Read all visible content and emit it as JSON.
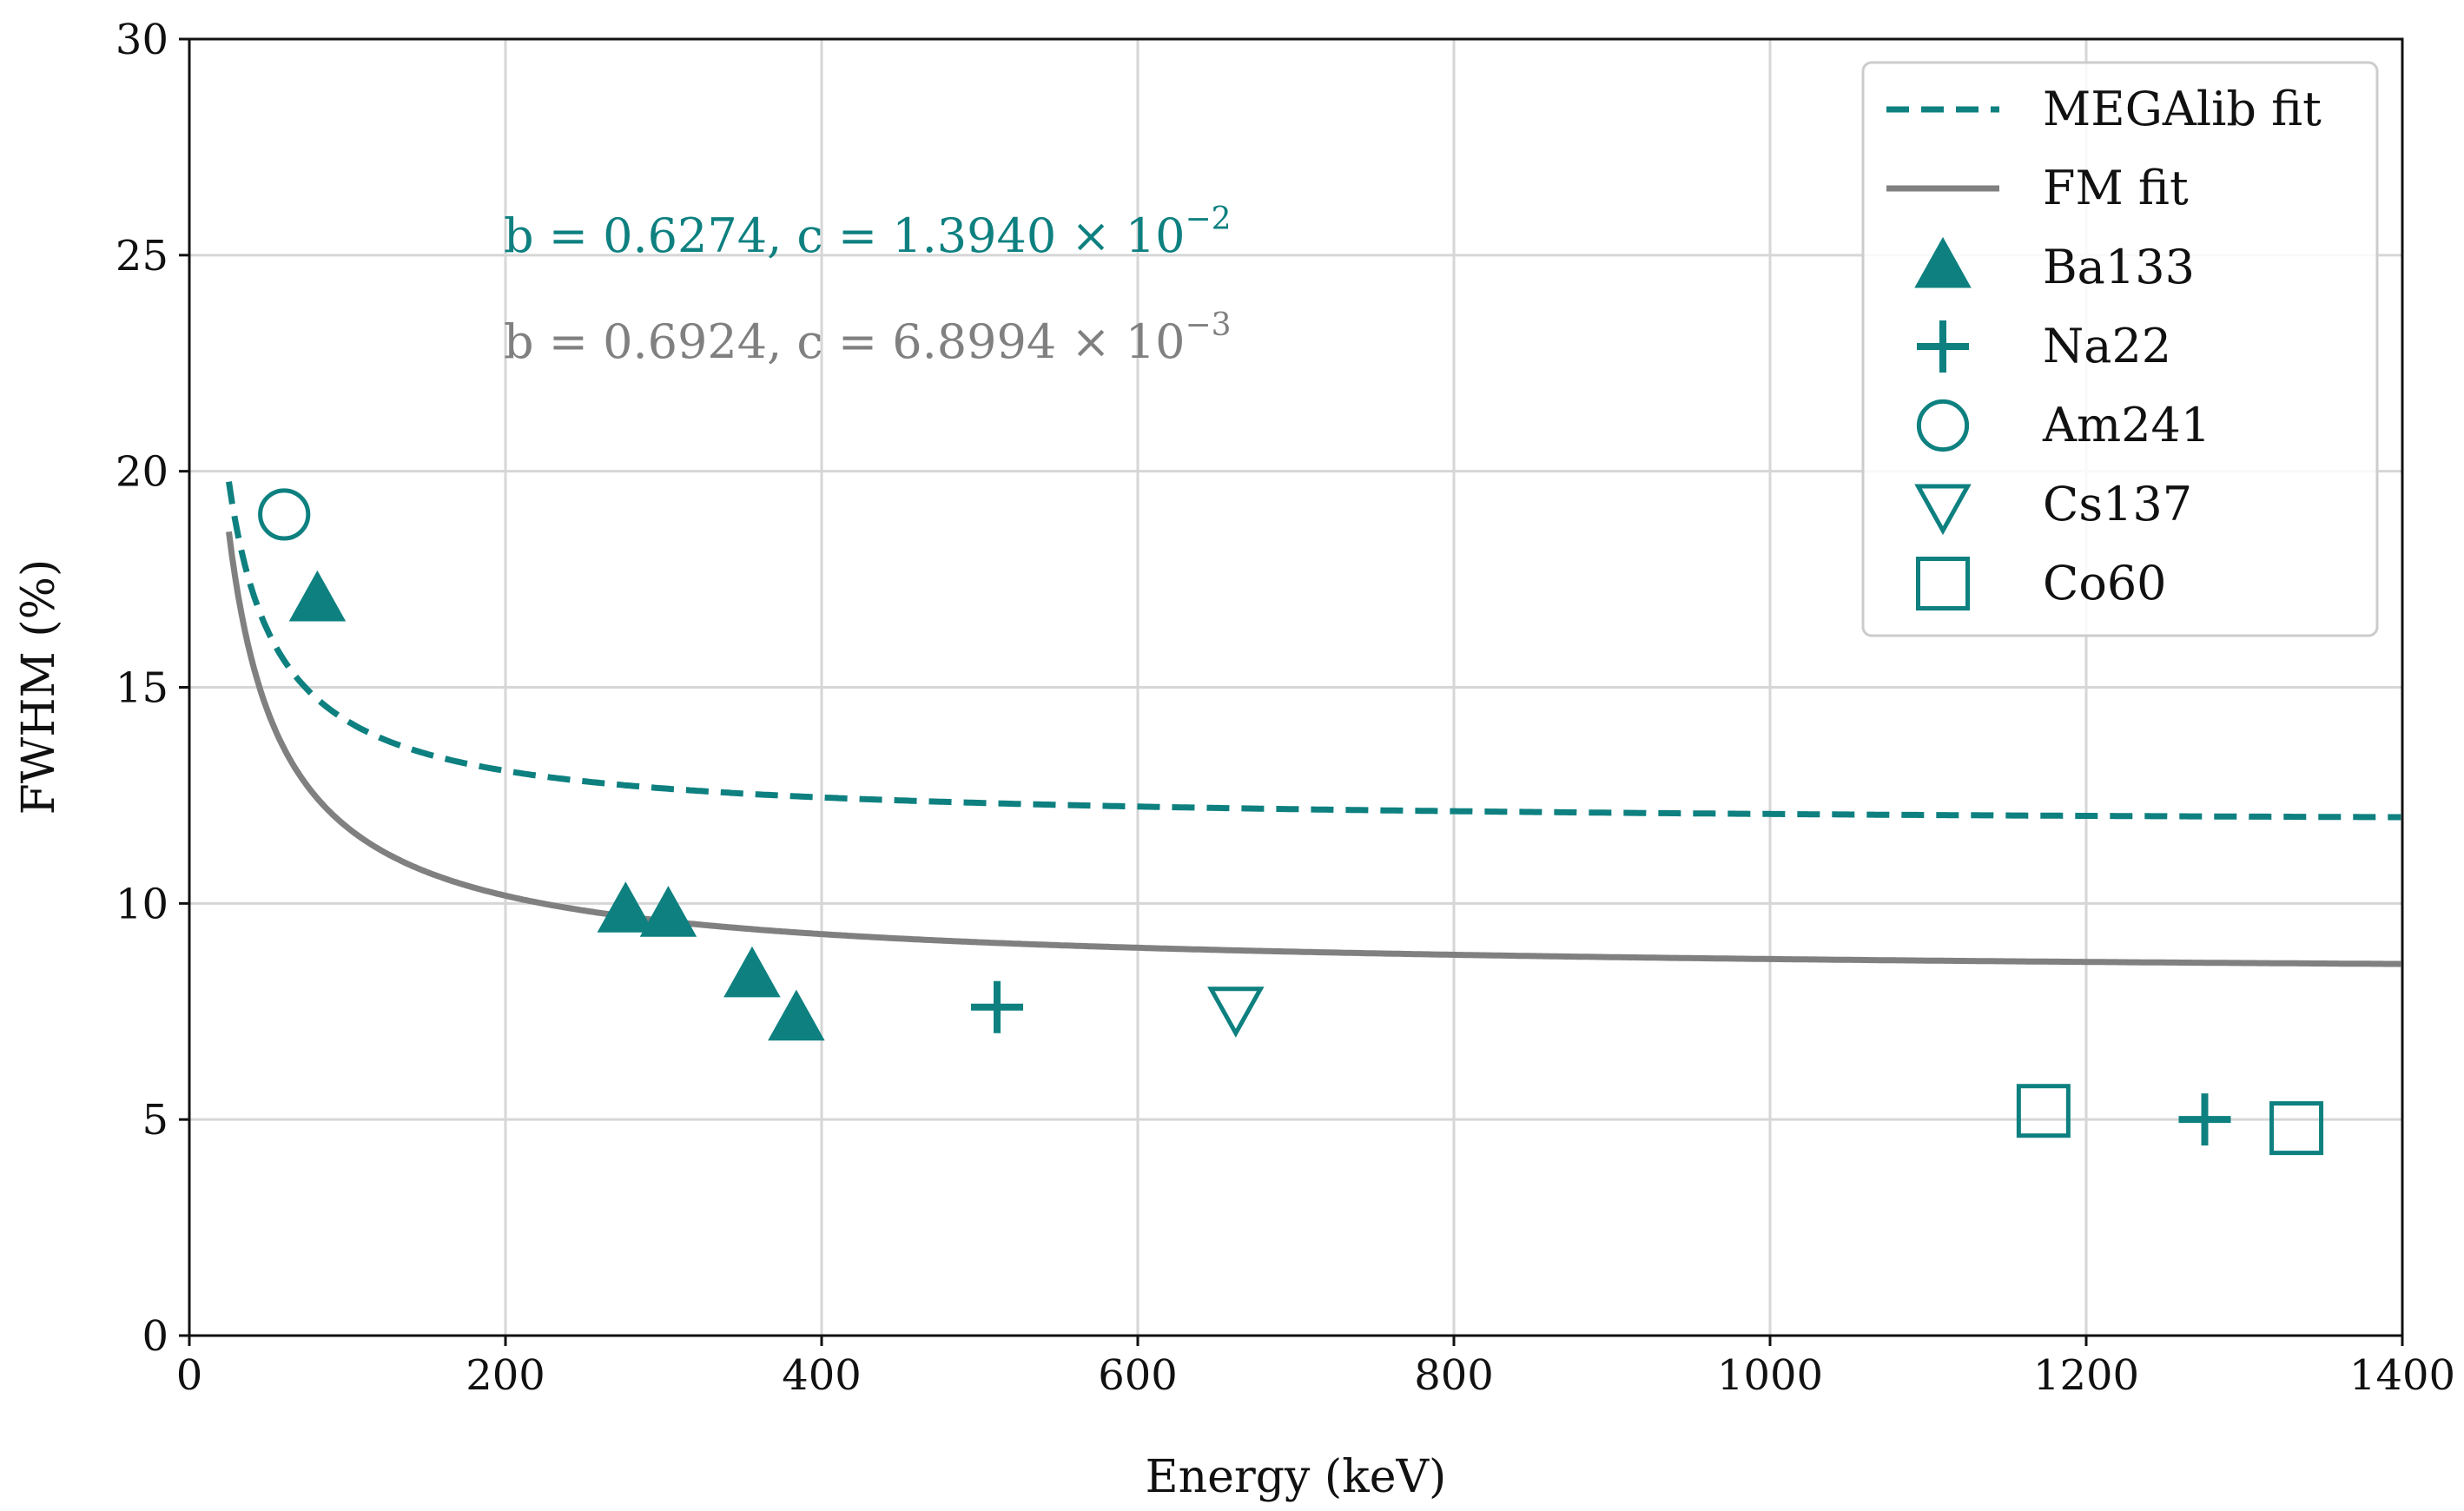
{
  "chart_data": {
    "type": "scatter",
    "xlabel": "Energy (keV)",
    "ylabel": "FWHM (%)",
    "xlim": [
      0,
      1400
    ],
    "ylim": [
      0,
      30
    ],
    "xticks": [
      0,
      200,
      400,
      600,
      800,
      1000,
      1200,
      1400
    ],
    "yticks": [
      0,
      5,
      10,
      15,
      20,
      25,
      30
    ],
    "grid": true,
    "legend_position": "top-right",
    "colors": {
      "teal": "#0e8080",
      "gray": "#808080"
    },
    "fits": [
      {
        "name": "MEGAlib fit",
        "style": "dashed",
        "color": "#0e8080",
        "b": 0.6274,
        "c": 0.01394,
        "x_range": [
          25,
          1400
        ]
      },
      {
        "name": "FM fit",
        "style": "solid",
        "color": "#808080",
        "b": 0.6924,
        "c": 0.0068994,
        "x_range": [
          25,
          1400
        ]
      }
    ],
    "series": [
      {
        "name": "Ba133",
        "marker": "triangle-up",
        "filled": true,
        "points": [
          [
            81,
            17.0
          ],
          [
            276,
            9.8
          ],
          [
            303,
            9.7
          ],
          [
            356,
            8.3
          ],
          [
            384,
            7.3
          ]
        ]
      },
      {
        "name": "Na22",
        "marker": "plus",
        "filled": true,
        "points": [
          [
            511,
            7.6
          ],
          [
            1275,
            5.0
          ]
        ]
      },
      {
        "name": "Am241",
        "marker": "circle",
        "filled": false,
        "points": [
          [
            60,
            19.0
          ]
        ]
      },
      {
        "name": "Cs137",
        "marker": "triangle-down",
        "filled": false,
        "points": [
          [
            662,
            7.6
          ]
        ]
      },
      {
        "name": "Co60",
        "marker": "square",
        "filled": false,
        "points": [
          [
            1173,
            5.2
          ],
          [
            1333,
            4.8
          ]
        ]
      }
    ],
    "annotations": [
      {
        "color": "#0e8080",
        "base": "b = 0.6274, c = 1.3940 × 10",
        "exp": "−2"
      },
      {
        "color": "#808080",
        "base": "b = 0.6924, c = 6.8994 × 10",
        "exp": "−3"
      }
    ]
  }
}
